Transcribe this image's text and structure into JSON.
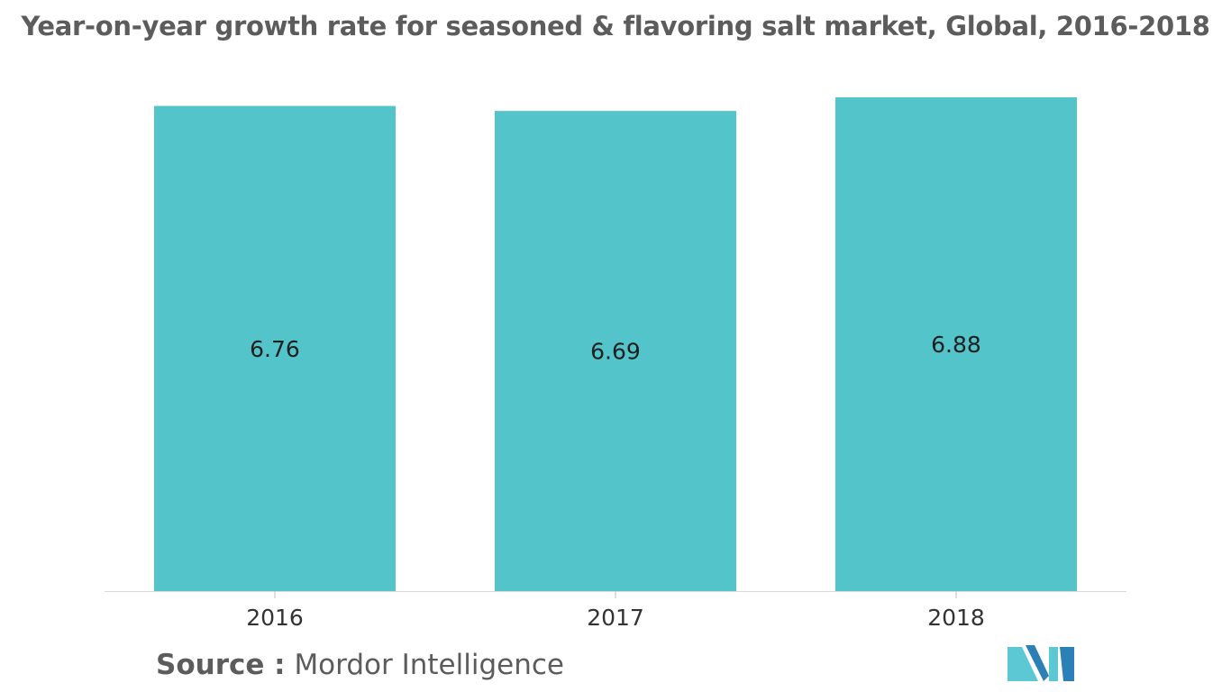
{
  "chart_data": {
    "type": "bar",
    "title": "Year-on-year growth rate for seasoned & flavoring salt market, Global, 2016-2018",
    "categories": [
      "2016",
      "2017",
      "2018"
    ],
    "values": [
      6.76,
      6.69,
      6.88
    ],
    "data_labels": [
      "6.76",
      "6.69",
      "6.88"
    ],
    "xlabel": "",
    "ylabel": "",
    "ylim": [
      0,
      6.88
    ],
    "grid": false,
    "legend": "none",
    "bar_color": "#52c4ca"
  },
  "source": {
    "prefix": "Source :",
    "name": "Mordor Intelligence"
  },
  "logo": {
    "icon": "mordor-intelligence-logo-icon",
    "colors": [
      "#5bc8d3",
      "#2d7fb8"
    ]
  }
}
